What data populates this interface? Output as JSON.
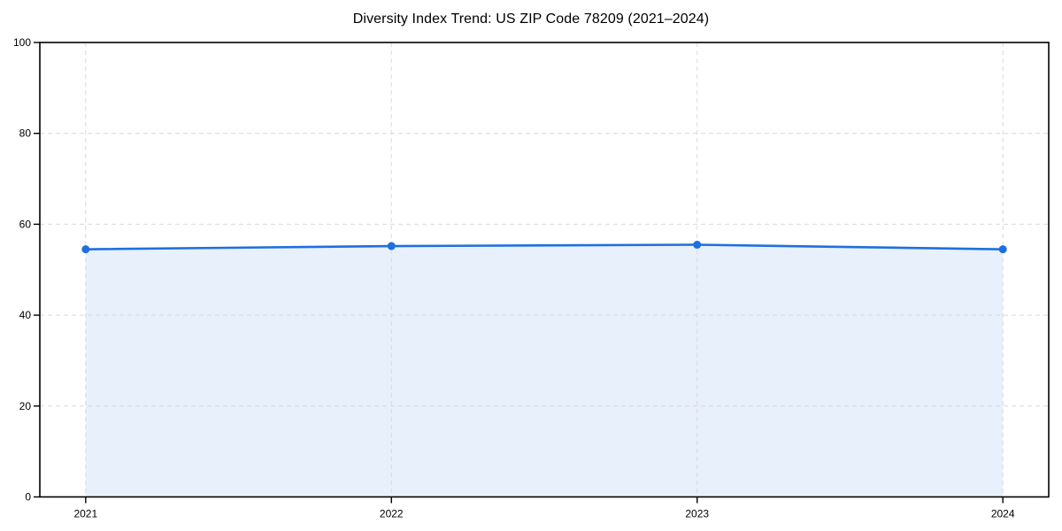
{
  "page": {
    "background": "#ffffff"
  },
  "chart_data": {
    "type": "area",
    "title": "Diversity Index Trend: US ZIP Code 78209 (2021–2024)",
    "x": [
      2021,
      2022,
      2023,
      2024
    ],
    "xticks": [
      "2021",
      "2022",
      "2023",
      "2024"
    ],
    "series": [
      {
        "name": "Diversity Index",
        "values": [
          54.5,
          55.2,
          55.5,
          54.5
        ]
      }
    ],
    "xlabel": "",
    "ylabel": "",
    "ylim": [
      0,
      100
    ],
    "yticks": [
      0,
      20,
      40,
      60,
      80,
      100
    ],
    "grid": true,
    "grid_style": "dashed",
    "legend": "none",
    "marker": "circle",
    "colors": {
      "line": "#1e6fe0",
      "fill": "#e8f0fc",
      "grid": "#d9d9d9",
      "axis": "#000000",
      "text": "#000000",
      "background": "#ffffff"
    }
  }
}
